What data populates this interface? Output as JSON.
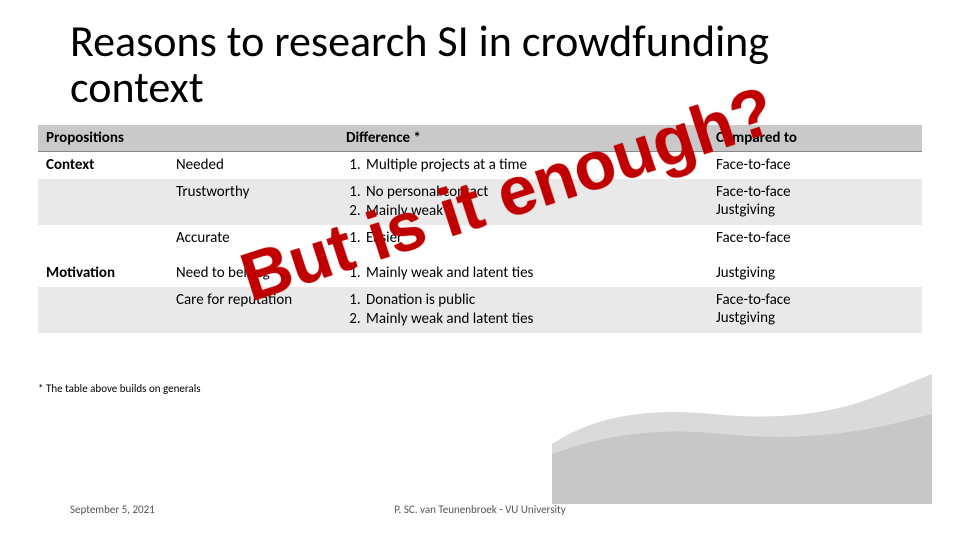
{
  "title": "Reasons to research SI in crowdfunding context",
  "headers": {
    "c1": "Propositions",
    "c2": "",
    "c3": "Difference *",
    "c4": "Compared to"
  },
  "rows": [
    {
      "c1": "Context",
      "c2": "Needed",
      "diffs": [
        "Multiple projects at a time"
      ],
      "c4": "Face-to-face",
      "cls": "row-white"
    },
    {
      "c1": "",
      "c2": "Trustworthy",
      "diffs": [
        "No personal contact",
        "Mainly weak"
      ],
      "c4": "Face-to-face\nJustgiving",
      "cls": "row-alt"
    },
    {
      "c1": "",
      "c2": "Accurate",
      "diffs": [
        "Easier"
      ],
      "c4": "Face-to-face",
      "cls": "row-white"
    },
    {
      "sep": true
    },
    {
      "c1": "Motivation",
      "c2": "Need to belong",
      "diffs": [
        "Mainly weak and latent ties"
      ],
      "c4": "Justgiving",
      "cls": "row-white"
    },
    {
      "c1": "",
      "c2": "Care for reputation",
      "diffs": [
        "Donation is public",
        "Mainly weak and latent ties"
      ],
      "c4": "Face-to-face\nJustgiving",
      "cls": "row-alt"
    }
  ],
  "footnote": "* The table above builds on generals",
  "overlay": "But is it enough?",
  "footer": {
    "date": "September 5, 2021",
    "author": "P. SC. van Teunenbroek - VU University"
  },
  "colors": {
    "overlay": "#c00000",
    "header_bg": "#c9c9c9",
    "alt_bg": "#e9e9e9"
  }
}
